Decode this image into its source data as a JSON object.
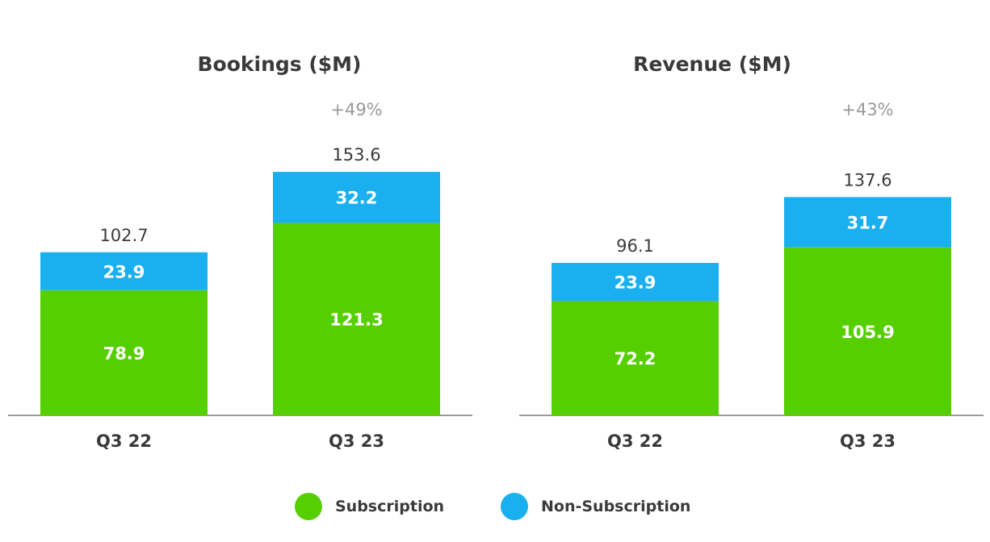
{
  "colors": {
    "subscription": "#56cf00",
    "non_subscription": "#1ab0f0",
    "total_label": "#3a3a3a",
    "growth_label": "#9a9a9a",
    "segment_label": "#ffffff",
    "axis": "#9a9a9a"
  },
  "legend": {
    "subscription_label": "Subscription",
    "non_subscription_label": "Non-Subscription"
  },
  "chart_data": [
    {
      "type": "bar",
      "stacked": true,
      "title": "Bookings ($M)",
      "categories": [
        "Q3 22",
        "Q3 23"
      ],
      "series": [
        {
          "name": "Subscription",
          "values": [
            78.9,
            121.3
          ]
        },
        {
          "name": "Non-Subscription",
          "values": [
            23.9,
            32.2
          ]
        }
      ],
      "totals": [
        "102.7",
        "153.6"
      ],
      "annotation": {
        "category": "Q3 23",
        "text": "+49%"
      },
      "ylim": [
        0,
        160
      ],
      "grid": false,
      "legend_position": "bottom-center"
    },
    {
      "type": "bar",
      "stacked": true,
      "title": "Revenue ($M)",
      "categories": [
        "Q3 22",
        "Q3 23"
      ],
      "series": [
        {
          "name": "Subscription",
          "values": [
            72.2,
            105.9
          ]
        },
        {
          "name": "Non-Subscription",
          "values": [
            23.9,
            31.7
          ]
        }
      ],
      "totals": [
        "96.1",
        "137.6"
      ],
      "annotation": {
        "category": "Q3 23",
        "text": "+43%"
      },
      "ylim": [
        0,
        160
      ],
      "grid": false,
      "legend_position": "bottom-center"
    }
  ]
}
